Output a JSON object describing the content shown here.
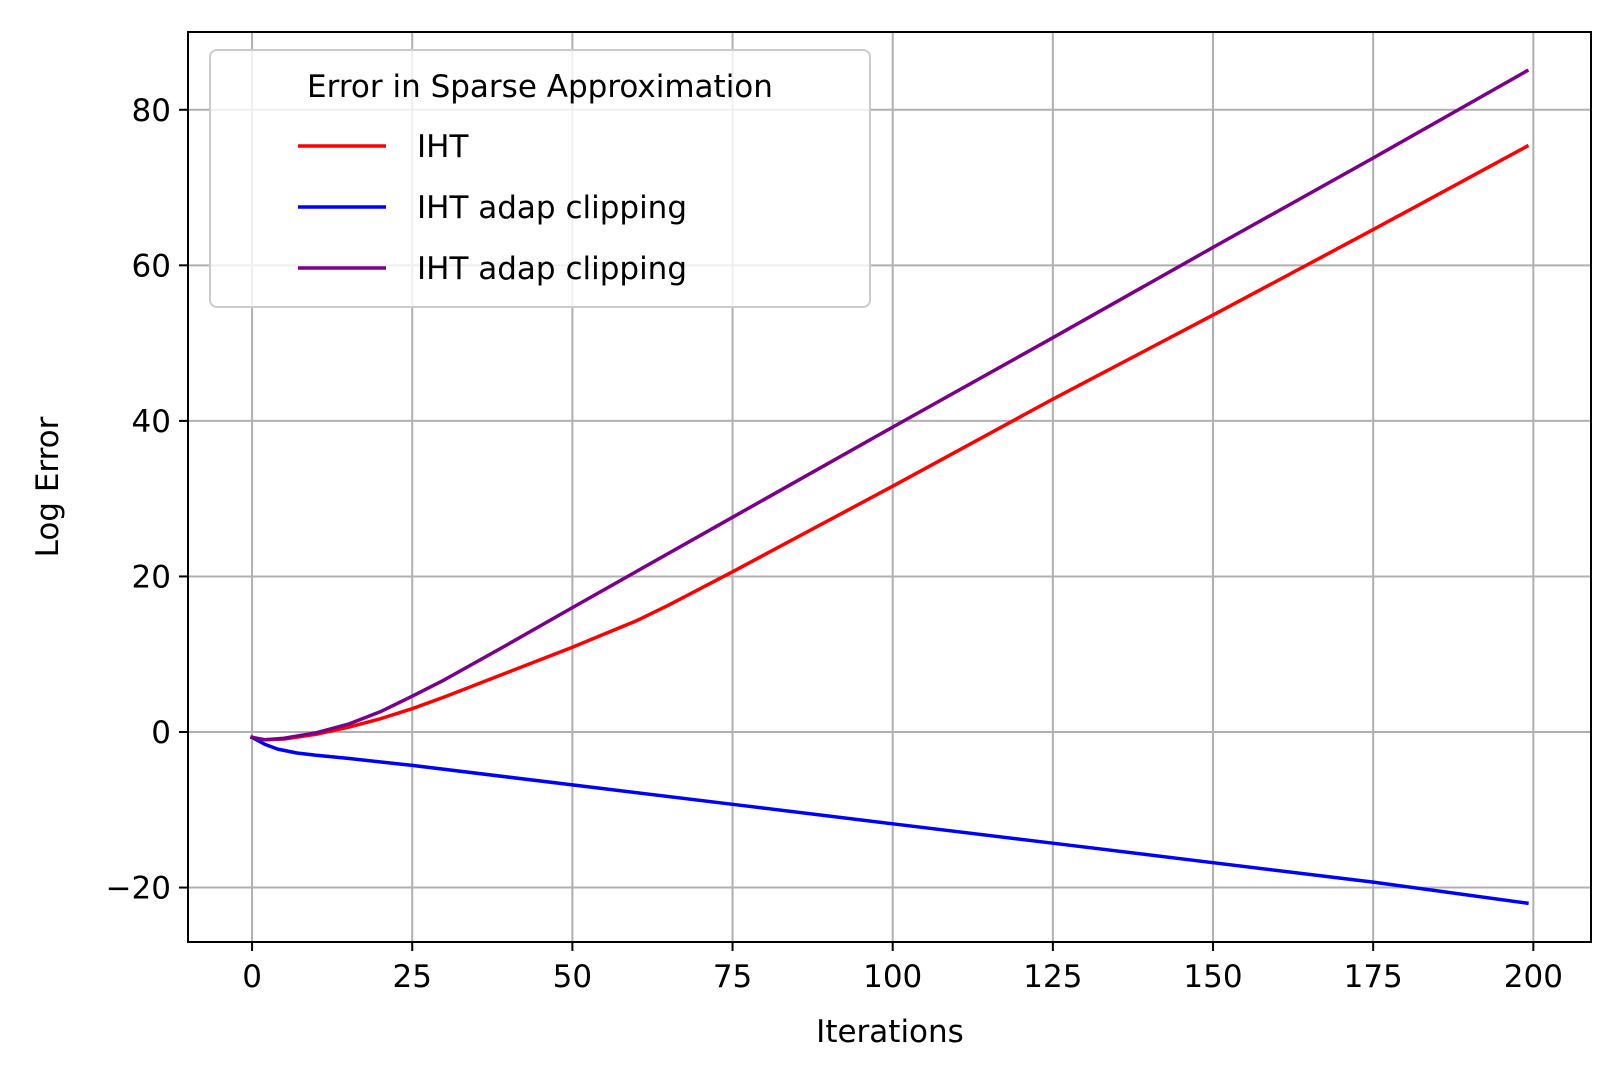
{
  "chart_data": {
    "type": "line",
    "title": "",
    "xlabel": "Iterations",
    "ylabel": "Log Error",
    "xlim": [
      -10,
      209
    ],
    "ylim": [
      -27,
      90
    ],
    "xticks": [
      0,
      25,
      50,
      75,
      100,
      125,
      150,
      175,
      200
    ],
    "yticks": [
      -20,
      0,
      20,
      40,
      60,
      80
    ],
    "xtick_labels": [
      "0",
      "25",
      "50",
      "75",
      "100",
      "125",
      "150",
      "175",
      "200"
    ],
    "ytick_labels": [
      "−20",
      "0",
      "20",
      "40",
      "60",
      "80"
    ],
    "grid": true,
    "legend": {
      "title": "Error in Sparse Approximation",
      "placement": "upper-left"
    },
    "series": [
      {
        "name": "IHT",
        "color": "#ff0000",
        "x": [
          0,
          2,
          5,
          10,
          15,
          20,
          25,
          30,
          40,
          50,
          60,
          65,
          75,
          100,
          125,
          150,
          175,
          199
        ],
        "y": [
          -0.7,
          -1.0,
          -0.9,
          -0.3,
          0.6,
          1.7,
          3.0,
          4.5,
          7.7,
          10.9,
          14.3,
          16.3,
          20.6,
          31.6,
          42.8,
          53.6,
          64.6,
          75.3
        ]
      },
      {
        "name": "IHT adap clipping",
        "color": "#0000ff",
        "x": [
          0,
          2,
          4,
          7,
          10,
          15,
          25,
          50,
          75,
          100,
          125,
          150,
          175,
          199
        ],
        "y": [
          -0.7,
          -1.6,
          -2.2,
          -2.7,
          -3.0,
          -3.4,
          -4.3,
          -6.8,
          -9.3,
          -11.8,
          -14.3,
          -16.8,
          -19.3,
          -22.0
        ]
      },
      {
        "name": "IHT adap clipping",
        "color": "#7b0089",
        "x": [
          0,
          2,
          5,
          10,
          15,
          20,
          25,
          30,
          40,
          50,
          75,
          100,
          125,
          150,
          175,
          199
        ],
        "y": [
          -0.7,
          -1.0,
          -0.8,
          -0.1,
          1.0,
          2.6,
          4.6,
          6.7,
          11.3,
          16.0,
          27.6,
          39.2,
          50.7,
          62.3,
          73.8,
          85.0
        ]
      }
    ]
  },
  "colors": {
    "grid": "#b0b0b0",
    "axes": "#000000",
    "legend_border": "#cccccc"
  }
}
